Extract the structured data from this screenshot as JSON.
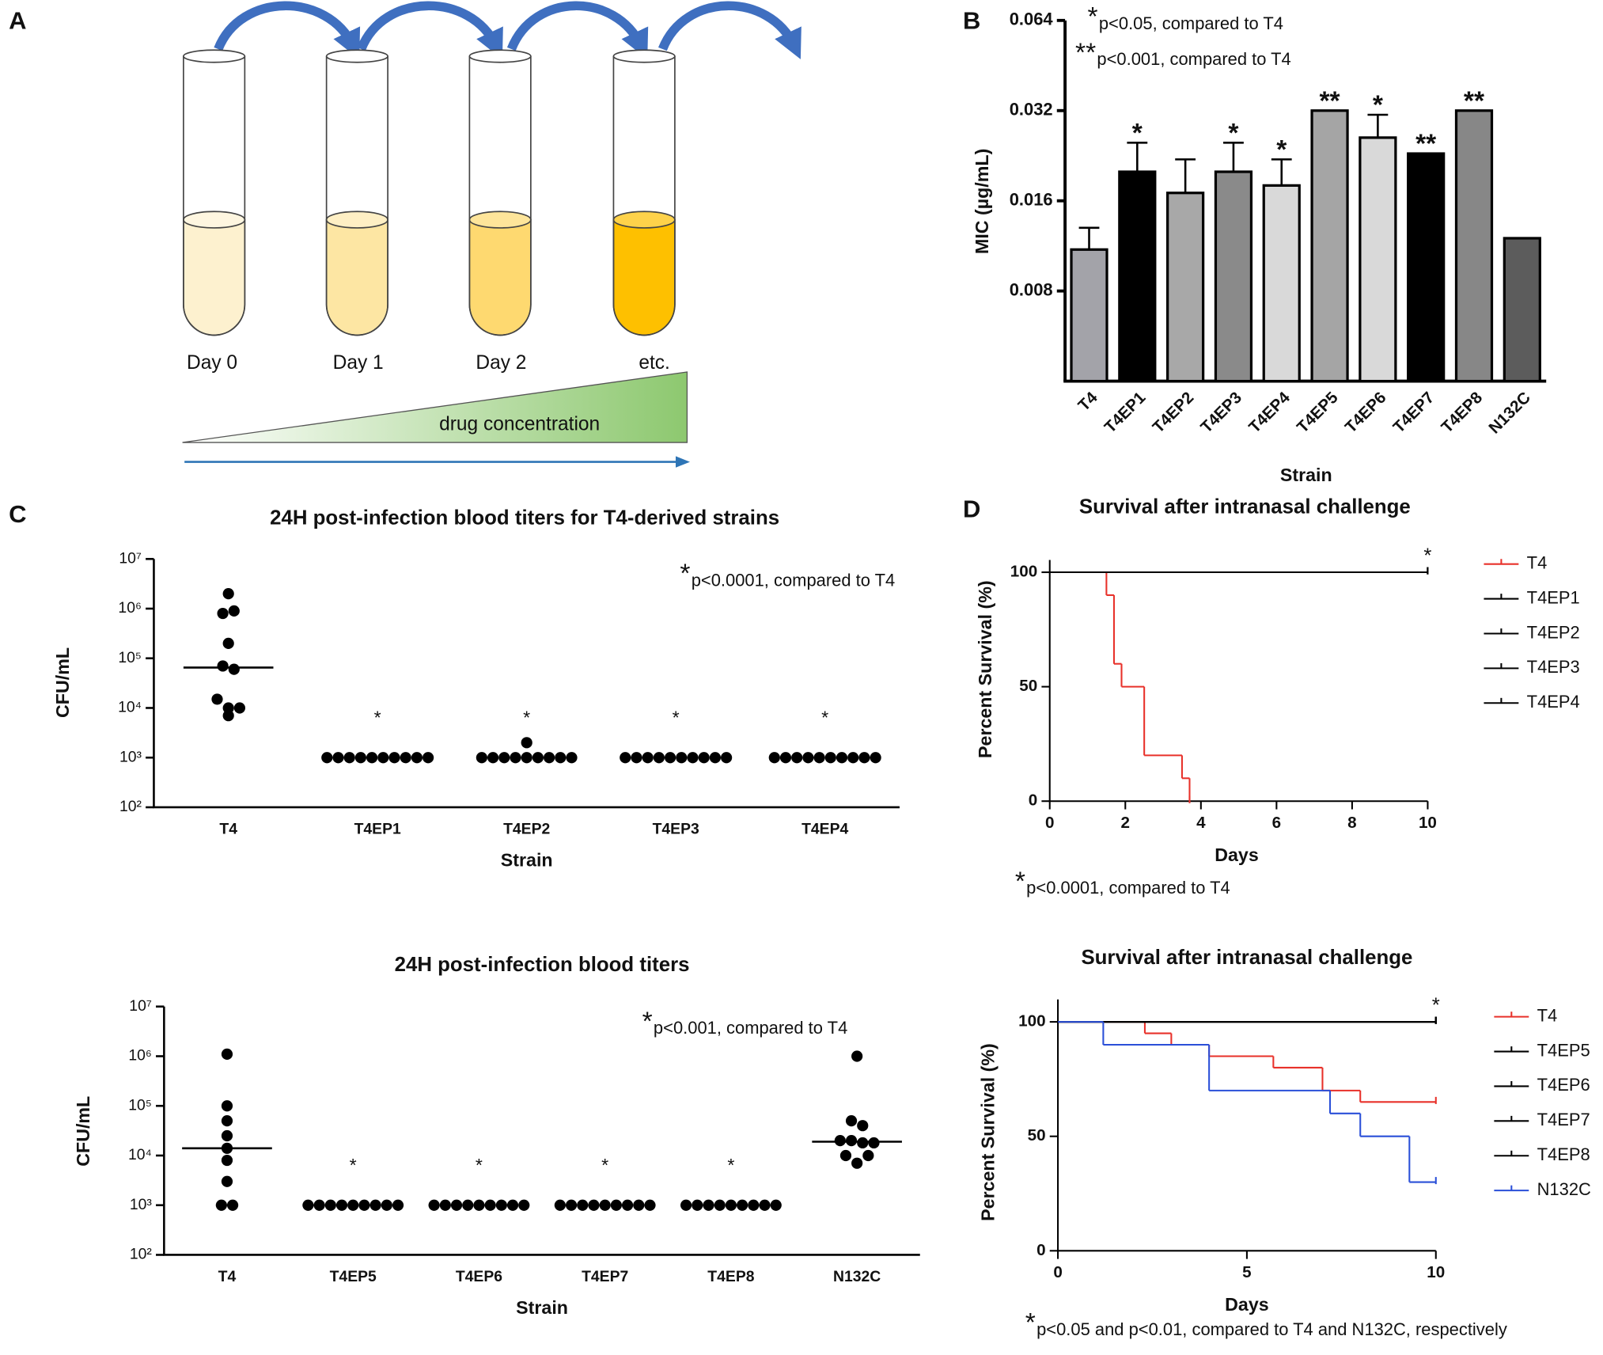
{
  "diagram": {
    "panel": "A",
    "days": [
      "Day 0",
      "Day 1",
      "Day 2",
      "etc."
    ],
    "gradient_label": "drug concentration"
  },
  "chart_data": [
    {
      "type": "bar",
      "panel": "B",
      "categories": [
        "T4",
        "T4EP1",
        "T4EP2",
        "T4EP3",
        "T4EP4",
        "T4EP5",
        "T4EP6",
        "T4EP7",
        "T4EP8",
        "N132C"
      ],
      "values": [
        0.011,
        0.02,
        0.017,
        0.02,
        0.018,
        0.032,
        0.026,
        0.023,
        0.032,
        0.012
      ],
      "errors": [
        0.002,
        0.005,
        0.005,
        0.005,
        0.004,
        null,
        0.005,
        null,
        null,
        null
      ],
      "significance": [
        null,
        "*",
        null,
        "*",
        "*",
        "**",
        "*",
        "**",
        "**",
        null
      ],
      "colors": [
        "#a3a3a9",
        "#000000",
        "#a8a8a8",
        "#8a8a8a",
        "#d9d9d9",
        "#a5a5a5",
        "#d9d9d9",
        "#000000",
        "#878787",
        "#5c5c5c"
      ],
      "yscale": "log",
      "ylim": [
        0.004,
        0.064
      ],
      "yticks": [
        0.008,
        0.016,
        0.032,
        0.064
      ],
      "ylabel": "MIC (µg/mL)",
      "xlabel": "Strain",
      "notes": [
        {
          "symbol": "*",
          "text": "p<0.05, compared to T4"
        },
        {
          "symbol": "**",
          "text": "p<0.001, compared to T4"
        }
      ]
    },
    {
      "type": "strip",
      "panel": "C",
      "title": "24H post-infection blood titers for T4-derived strains",
      "categories": [
        "T4",
        "T4EP1",
        "T4EP2",
        "T4EP3",
        "T4EP4"
      ],
      "values": [
        [
          2000000,
          800000,
          900000,
          200000,
          70000,
          60000,
          15000,
          10000,
          10000,
          7000
        ],
        [
          1000,
          1000,
          1000,
          1000,
          1000,
          1000,
          1000,
          1000,
          1000,
          1000
        ],
        [
          2000,
          1000,
          1000,
          1000,
          1000,
          1000,
          1000,
          1000,
          1000,
          1000
        ],
        [
          1000,
          1000,
          1000,
          1000,
          1000,
          1000,
          1000,
          1000,
          1000,
          1000
        ],
        [
          1000,
          1000,
          1000,
          1000,
          1000,
          1000,
          1000,
          1000,
          1000,
          1000
        ]
      ],
      "medians": [
        65000,
        null,
        null,
        null,
        null
      ],
      "significance": [
        null,
        "*",
        "*",
        "*",
        "*"
      ],
      "yscale": "log",
      "ylim": [
        100,
        10000000
      ],
      "yticks": [
        {
          "value": 100,
          "label": "10²"
        },
        {
          "value": 1000,
          "label": "10³"
        },
        {
          "value": 10000,
          "label": "10⁴"
        },
        {
          "value": 100000,
          "label": "10⁵"
        },
        {
          "value": 1000000,
          "label": "10⁶"
        },
        {
          "value": 10000000,
          "label": "10⁷"
        }
      ],
      "ylabel": "CFU/mL",
      "xlabel": "Strain",
      "notes": [
        {
          "symbol": "*",
          "text": "p<0.0001, compared to T4"
        }
      ]
    },
    {
      "type": "strip",
      "title": "24H post-infection blood titers",
      "categories": [
        "T4",
        "T4EP5",
        "T4EP6",
        "T4EP7",
        "T4EP8",
        "N132C"
      ],
      "values": [
        [
          1100000,
          100000,
          50000,
          25000,
          14000,
          8000,
          3000,
          1000,
          1000
        ],
        [
          1000,
          1000,
          1000,
          1000,
          1000,
          1000,
          1000,
          1000,
          1000
        ],
        [
          1000,
          1000,
          1000,
          1000,
          1000,
          1000,
          1000,
          1000,
          1000
        ],
        [
          1000,
          1000,
          1000,
          1000,
          1000,
          1000,
          1000,
          1000,
          1000
        ],
        [
          1000,
          1000,
          1000,
          1000,
          1000,
          1000,
          1000,
          1000,
          1000
        ],
        [
          1000000,
          50000,
          40000,
          20000,
          20000,
          18000,
          18000,
          10000,
          7000,
          10000
        ]
      ],
      "medians": [
        14000,
        null,
        null,
        null,
        null,
        19000
      ],
      "significance": [
        null,
        "*",
        "*",
        "*",
        "*",
        null
      ],
      "yscale": "log",
      "ylim": [
        100,
        10000000
      ],
      "yticks": [
        {
          "value": 100,
          "label": "10²"
        },
        {
          "value": 1000,
          "label": "10³"
        },
        {
          "value": 10000,
          "label": "10⁴"
        },
        {
          "value": 100000,
          "label": "10⁵"
        },
        {
          "value": 1000000,
          "label": "10⁶"
        },
        {
          "value": 10000000,
          "label": "10⁷"
        }
      ],
      "ylabel": "CFU/mL",
      "xlabel": "Strain",
      "notes": [
        {
          "symbol": "*",
          "text": "p<0.001, compared to T4"
        }
      ]
    },
    {
      "type": "step",
      "panel": "D",
      "title": "Survival after intranasal challenge",
      "series": [
        {
          "name": "T4",
          "color": "#e8312a",
          "x": [
            0,
            1.5,
            1.7,
            1.9,
            2.5,
            3.5,
            3.7
          ],
          "values": [
            100,
            90,
            60,
            50,
            20,
            10,
            0
          ]
        },
        {
          "name": "T4EP1",
          "color": "#000000",
          "x": [
            0,
            10
          ],
          "values": [
            100,
            100
          ]
        },
        {
          "name": "T4EP2",
          "color": "#000000",
          "x": [
            0,
            10
          ],
          "values": [
            100,
            100
          ]
        },
        {
          "name": "T4EP3",
          "color": "#000000",
          "x": [
            0,
            10
          ],
          "values": [
            100,
            100
          ]
        },
        {
          "name": "T4EP4",
          "color": "#000000",
          "x": [
            0,
            10
          ],
          "values": [
            100,
            100
          ]
        }
      ],
      "xlim": [
        0,
        10
      ],
      "xticks": [
        0,
        2,
        4,
        6,
        8,
        10
      ],
      "ylim": [
        0,
        100
      ],
      "yticks": [
        0,
        50,
        100
      ],
      "xlabel": "Days",
      "ylabel": "Percent  Survival (%)",
      "annotation": "*",
      "notes": [
        {
          "symbol": "*",
          "text": "p<0.0001, compared to T4"
        }
      ]
    },
    {
      "type": "step",
      "title": "Survival after intranasal challenge",
      "series": [
        {
          "name": "T4",
          "color": "#e8312a",
          "x": [
            0,
            2.3,
            3,
            4,
            5.7,
            7,
            8,
            10
          ],
          "values": [
            100,
            95,
            90,
            85,
            80,
            70,
            65,
            65
          ]
        },
        {
          "name": "T4EP5",
          "color": "#000000",
          "x": [
            0,
            10
          ],
          "values": [
            100,
            100
          ]
        },
        {
          "name": "T4EP6",
          "color": "#000000",
          "x": [
            0,
            10
          ],
          "values": [
            100,
            100
          ]
        },
        {
          "name": "T4EP7",
          "color": "#000000",
          "x": [
            0,
            10
          ],
          "values": [
            100,
            100
          ]
        },
        {
          "name": "T4EP8",
          "color": "#000000",
          "x": [
            0,
            10
          ],
          "values": [
            100,
            100
          ]
        },
        {
          "name": "N132C",
          "color": "#2a4fd8",
          "x": [
            0,
            1.2,
            4,
            7.2,
            8,
            9.3,
            10
          ],
          "values": [
            100,
            90,
            70,
            60,
            50,
            30,
            30
          ]
        }
      ],
      "xlim": [
        0,
        10
      ],
      "xticks": [
        0,
        5,
        10
      ],
      "ylim": [
        0,
        100
      ],
      "yticks": [
        0,
        50,
        100
      ],
      "xlabel": "Days",
      "ylabel": "Percent  Survival (%)",
      "annotation": "*",
      "notes": [
        {
          "symbol": "*",
          "text": "p<0.05 and p<0.01, compared to T4 and N132C, respectively"
        }
      ]
    }
  ]
}
